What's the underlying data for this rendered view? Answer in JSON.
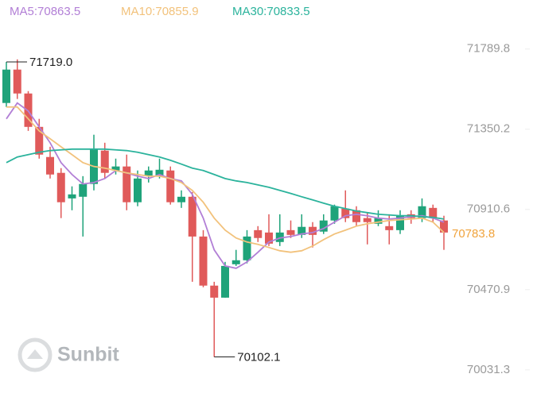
{
  "chart_data": {
    "type": "candlestick",
    "watermark": "Sunbit",
    "up_color": "#1fa37a",
    "down_color": "#e05a5a",
    "open": [
      71494,
      71677,
      71546,
      71363,
      71198,
      71111,
      70971,
      70980,
      71050,
      71233,
      71124,
      71146,
      70950,
      71093,
      71093,
      71124,
      70950,
      70980,
      70762,
      70493,
      70427,
      70610,
      70632,
      70797,
      70784,
      70732,
      70797,
      70771,
      70815,
      70789,
      70850,
      70915,
      70906,
      70863,
      70832,
      70819,
      70797,
      70884,
      70863,
      70919,
      70850
    ],
    "high": [
      71719,
      71733,
      71559,
      71407,
      71254,
      71137,
      71037,
      71093,
      71320,
      71276,
      71189,
      71211,
      71124,
      71146,
      71189,
      71146,
      71015,
      71006,
      70797,
      70514,
      70623,
      70689,
      70797,
      70819,
      70884,
      70884,
      70850,
      70884,
      70841,
      70884,
      70937,
      71015,
      70928,
      70893,
      70906,
      70884,
      70906,
      70906,
      70971,
      70937,
      70876
    ],
    "low": [
      71472,
      71516,
      71341,
      71189,
      71080,
      70863,
      70906,
      70762,
      71015,
      71080,
      71102,
      70906,
      70928,
      71058,
      71080,
      70937,
      70919,
      70514,
      70484,
      70102.1,
      70427,
      70601,
      70615,
      70732,
      70710,
      70710,
      70754,
      70754,
      70702,
      70776,
      70832,
      70841,
      70819,
      70719,
      70819,
      70719,
      70776,
      70832,
      70841,
      70841,
      70689
    ],
    "close": [
      71677,
      71546,
      71363,
      71211,
      71102,
      70950,
      70993,
      71050,
      71241,
      71111,
      71146,
      70950,
      71080,
      71124,
      71128,
      70950,
      70980,
      70762,
      70493,
      70427,
      70601,
      70632,
      70762,
      70754,
      70723,
      70784,
      70771,
      70815,
      70771,
      70850,
      70928,
      70863,
      70841,
      70841,
      70863,
      70797,
      70876,
      70863,
      70928,
      70863,
      70783.8
    ],
    "series": [
      {
        "name": "MA5:70863.5",
        "color": "#b27fd6",
        "values": [
          71407,
          71494,
          71450,
          71363,
          71276,
          71167,
          71102,
          71050,
          71058,
          71080,
          71124,
          71111,
          71093,
          71080,
          71102,
          71080,
          71067,
          70993,
          70863,
          70689,
          70601,
          70588,
          70623,
          70676,
          70732,
          70754,
          70762,
          70776,
          70784,
          70806,
          70841,
          70876,
          70884,
          70876,
          70863,
          70858,
          70863,
          70871,
          70876,
          70863,
          70841
        ]
      },
      {
        "name": "MA10:70855.9",
        "color": "#f2c27c",
        "values": [
          71472,
          71472,
          71407,
          71341,
          71298,
          71254,
          71211,
          71167,
          71146,
          71137,
          71124,
          71111,
          71102,
          71093,
          71093,
          71080,
          71058,
          71015,
          70950,
          70863,
          70797,
          70754,
          70732,
          70719,
          70702,
          70684,
          70676,
          70684,
          70710,
          70745,
          70776,
          70797,
          70819,
          70832,
          70841,
          70850,
          70854,
          70858,
          70863,
          70841,
          70784
        ]
      },
      {
        "name": "MA30:70833.5",
        "color": "#2bb39c",
        "values": [
          71167,
          71198,
          71211,
          71224,
          71233,
          71237,
          71241,
          71241,
          71241,
          71241,
          71237,
          71233,
          71224,
          71211,
          71198,
          71180,
          71159,
          71137,
          71124,
          71102,
          71080,
          71067,
          71058,
          71045,
          71032,
          71015,
          70998,
          70980,
          70963,
          70945,
          70928,
          70915,
          70902,
          70893,
          70884,
          70880,
          70876,
          70876,
          70871,
          70867,
          70858
        ]
      }
    ],
    "annotations": [
      {
        "value": 71719,
        "label": "71719.0"
      },
      {
        "value": 70102.1,
        "label": "70102.1"
      },
      {
        "value": 70783.8,
        "label": "70783.8"
      }
    ],
    "ylim": [
      70000,
      71880
    ],
    "yticks": [
      71789.8,
      71350.2,
      70910.6,
      70470.9,
      70031.3
    ]
  }
}
